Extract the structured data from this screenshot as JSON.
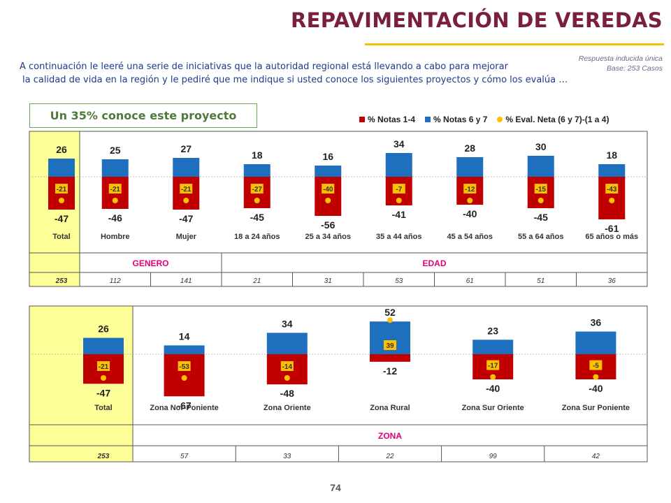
{
  "title": "REPAVIMENTACIÓN DE VEREDAS",
  "intro": {
    "line1": "A continuación le leeré una serie de iniciativas que la autoridad regional está llevando a cabo para mejorar",
    "line2": "la calidad de vida en la región y le pediré que me indique si usted conoce los siguientes proyectos y cómo los evalúa …"
  },
  "note": {
    "line1": "Respuesta inducida única",
    "line2": "Base: 253 Casos"
  },
  "know_label": "Un 35% conoce este proyecto",
  "legend": [
    {
      "label": "% Notas 1-4",
      "color": "#c00000",
      "icon": "square"
    },
    {
      "label": "% Notas 6 y 7",
      "color": "#1f6fbf",
      "icon": "square"
    },
    {
      "label": "% Eval. Neta (6 y 7)-(1 a 4)",
      "color": "#ffc000",
      "icon": "dot"
    }
  ],
  "colors": {
    "negative": "#c00000",
    "positive": "#1f6fbf",
    "net": "#ffc000",
    "highlight": "#ffff99",
    "group_label": "#e0007a"
  },
  "page_number": "74",
  "chart_data": [
    {
      "type": "bar",
      "categories": [
        "Total",
        "Hombre",
        "Mujer",
        "18 a 24 años",
        "25 a 34 años",
        "35 a 44 años",
        "45 a 54 años",
        "55 a 64 años",
        "65 años o más"
      ],
      "series": [
        {
          "name": "% Notas 1-4",
          "values": [
            -47,
            -46,
            -47,
            -45,
            -56,
            -41,
            -40,
            -45,
            -61
          ]
        },
        {
          "name": "% Notas 6 y 7",
          "values": [
            26,
            25,
            27,
            18,
            16,
            34,
            28,
            30,
            18
          ]
        },
        {
          "name": "% Eval. Neta (6 y 7)-(1 a 4)",
          "values": [
            -21,
            -21,
            -21,
            -27,
            -40,
            -7,
            -12,
            -15,
            -43
          ]
        }
      ],
      "groups": [
        {
          "label": "GENERO",
          "members": [
            "Hombre",
            "Mujer"
          ]
        },
        {
          "label": "EDAD",
          "members": [
            "18 a 24 años",
            "25 a 34 años",
            "35 a 44 años",
            "45 a 54 años",
            "55 a 64 años",
            "65 años o más"
          ]
        }
      ],
      "bases": [
        "253",
        "112",
        "141",
        "21",
        "31",
        "53",
        "61",
        "51",
        "36"
      ]
    },
    {
      "type": "bar",
      "categories": [
        "Total",
        "Zona Nor-Poniente",
        "Zona Oriente",
        "Zona Rural",
        "Zona Sur Oriente",
        "Zona Sur Poniente"
      ],
      "series": [
        {
          "name": "% Notas 1-4",
          "values": [
            -47,
            -67,
            -48,
            -12,
            -40,
            -40
          ]
        },
        {
          "name": "% Notas 6 y 7",
          "values": [
            26,
            14,
            34,
            52,
            23,
            36
          ]
        },
        {
          "name": "% Eval. Neta (6 y 7)-(1 a 4)",
          "values": [
            -21,
            -53,
            -14,
            39,
            -17,
            -5
          ]
        }
      ],
      "groups": [
        {
          "label": "ZONA",
          "members": [
            "Zona Nor-Poniente",
            "Zona Oriente",
            "Zona Rural",
            "Zona Sur Oriente",
            "Zona Sur Poniente"
          ]
        }
      ],
      "bases": [
        "253",
        "57",
        "33",
        "22",
        "99",
        "42"
      ]
    }
  ]
}
